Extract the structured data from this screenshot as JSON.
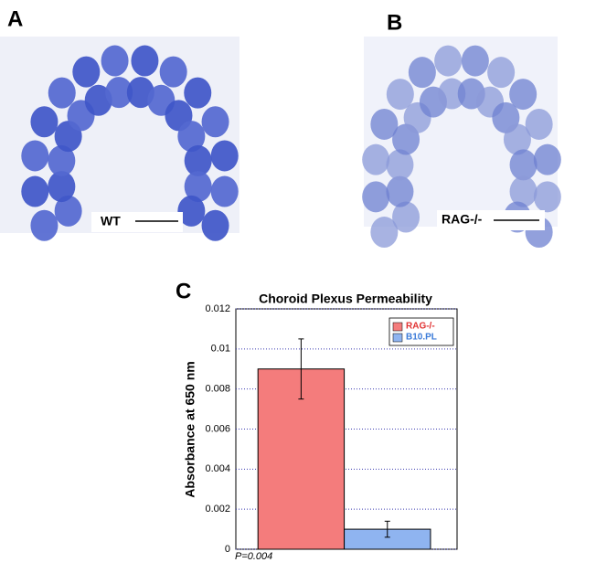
{
  "panels": [
    {
      "label": "A",
      "caption": "WT"
    },
    {
      "label": "B",
      "caption": "RAG-/-"
    }
  ],
  "chart_label": "C",
  "chart_data": {
    "type": "bar",
    "title": "Choroid Plexus Permeability",
    "y_label": "Absorbance at 650 nm",
    "annotation": "P=0.004",
    "categories": [
      null
    ],
    "series": [
      {
        "name": "RAG-/-",
        "color": "#f47c7c",
        "legend_text_color": "#e03030",
        "values": [
          0.009
        ],
        "errors": [
          0.0015
        ]
      },
      {
        "name": "B10.PL",
        "color": "#8fb4f0",
        "legend_text_color": "#3a7ad8",
        "values": [
          0.001
        ],
        "errors": [
          0.0004
        ]
      }
    ],
    "ylim": [
      0,
      0.012
    ],
    "yticks": [
      0,
      0.002,
      0.004,
      0.006,
      0.008,
      0.01,
      0.012
    ],
    "grid": true,
    "legend": "top-right"
  }
}
